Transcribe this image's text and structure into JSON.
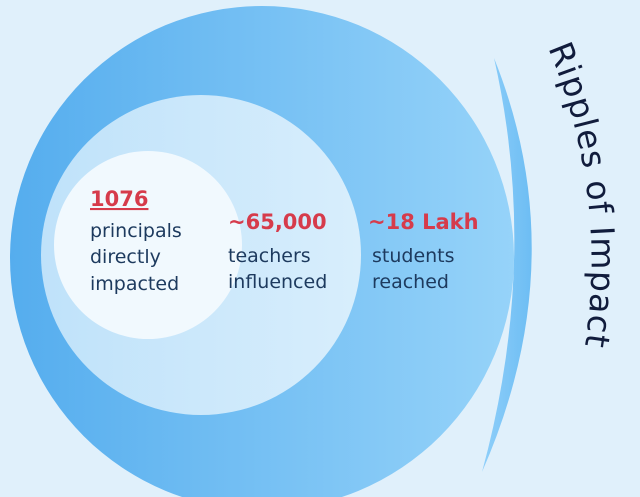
{
  "title": "Ripples of Impact",
  "rings": [
    {
      "value": "1076",
      "label": [
        "principals",
        "directly",
        "impacted"
      ]
    },
    {
      "value": "~65,000",
      "label": [
        "teachers",
        "influenced"
      ]
    },
    {
      "value": "~18 Lakh",
      "label": [
        "students",
        "reached"
      ]
    }
  ]
}
